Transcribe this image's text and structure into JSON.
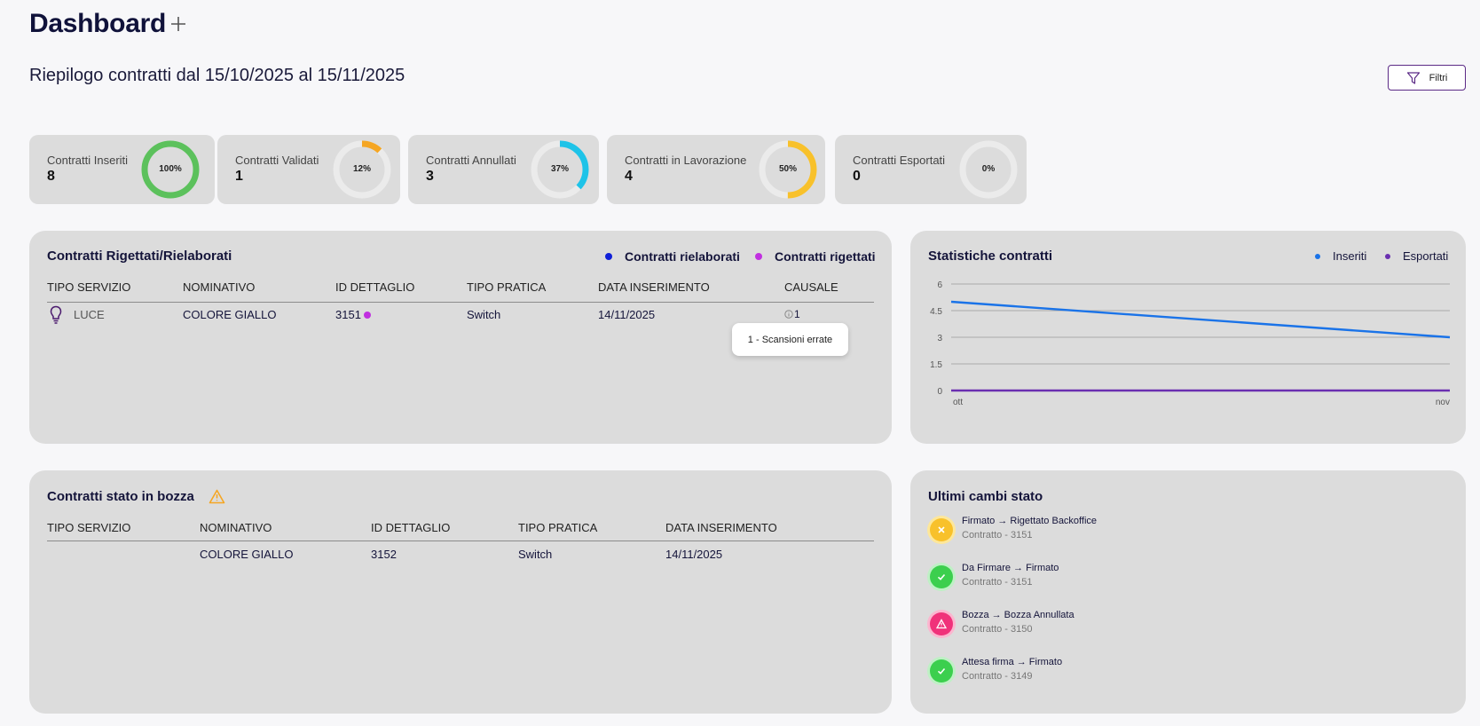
{
  "header": {
    "title": "Dashboard",
    "subtitle": "Riepilogo contratti dal 15/10/2025 al 15/11/2025",
    "filter_label": "Filtri"
  },
  "kpis": [
    {
      "label": "Contratti Inseriti",
      "value": "8",
      "percent_label": "100%",
      "percent": 100,
      "color": "#5cc15c"
    },
    {
      "label": "Contratti Validati",
      "value": "1",
      "percent_label": "12%",
      "percent": 12,
      "color": "#f5a623"
    },
    {
      "label": "Contratti Annullati",
      "value": "3",
      "percent_label": "37%",
      "percent": 37,
      "color": "#1ec3e8"
    },
    {
      "label": "Contratti in Lavorazione",
      "value": "4",
      "percent_label": "50%",
      "percent": 50,
      "color": "#f8c12b"
    },
    {
      "label": "Contratti Esportati",
      "value": "0",
      "percent_label": "0%",
      "percent": 0,
      "color": "#aaaaaa"
    }
  ],
  "rejected_panel": {
    "title": "Contratti Rigettati/Rielaborati",
    "legend": [
      {
        "label": "Contratti rielaborati",
        "color": "#1020d8"
      },
      {
        "label": "Contratti rigettati",
        "color": "#c130e0"
      }
    ],
    "columns": [
      "TIPO SERVIZIO",
      "NOMINATIVO",
      "ID DETTAGLIO",
      "TIPO PRATICA",
      "DATA INSERIMENTO",
      "CAUSALE"
    ],
    "rows": [
      {
        "service": "LUCE",
        "name": "COLORE GIALLO",
        "id": "3151",
        "type": "Switch",
        "date": "14/11/2025",
        "causale": "1"
      }
    ],
    "tooltip": "1 - Scansioni errate"
  },
  "stats_panel": {
    "title": "Statistiche contratti",
    "legend": [
      {
        "label": "Inseriti",
        "color": "#1a73e8"
      },
      {
        "label": "Esportati",
        "color": "#6a2fb0"
      }
    ]
  },
  "chart_data": {
    "type": "line",
    "x": [
      "ott",
      "nov"
    ],
    "series": [
      {
        "name": "Inseriti",
        "values": [
          5,
          3
        ],
        "color": "#1a73e8"
      },
      {
        "name": "Esportati",
        "values": [
          0,
          0
        ],
        "color": "#6a2fb0"
      }
    ],
    "y_ticks": [
      "6",
      "4.5",
      "3",
      "1.5",
      "0"
    ],
    "ylim": [
      0,
      6
    ],
    "grid": true,
    "legend": "top-right"
  },
  "draft_panel": {
    "title": "Contratti stato in bozza",
    "columns": [
      "TIPO SERVIZIO",
      "NOMINATIVO",
      "ID DETTAGLIO",
      "TIPO PRATICA",
      "DATA INSERIMENTO"
    ],
    "rows": [
      {
        "service": "",
        "name": "COLORE GIALLO",
        "id": "3152",
        "type": "Switch",
        "date": "14/11/2025"
      }
    ]
  },
  "status_panel": {
    "title": "Ultimi cambi stato",
    "items": [
      {
        "change": "Firmato → Rigettato Backoffice",
        "contract": "Contratto - 3151",
        "icon": "rejected-icon",
        "color": "#f8c12b"
      },
      {
        "change": "Da Firmare → Firmato",
        "contract": "Contratto - 3151",
        "icon": "check-icon",
        "color": "#3ccf4e"
      },
      {
        "change": "Bozza → Bozza Annullata",
        "contract": "Contratto - 3150",
        "icon": "warning-icon",
        "color": "#f0327a"
      },
      {
        "change": "Attesa firma → Firmato",
        "contract": "Contratto - 3149",
        "icon": "check-icon",
        "color": "#3ccf4e"
      }
    ]
  }
}
